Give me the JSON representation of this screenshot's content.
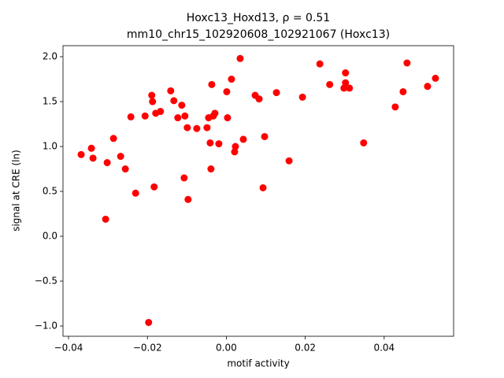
{
  "chart_data": {
    "type": "scatter",
    "title": "Hoxc13_Hoxd13, ρ = 0.51",
    "subtitle": "mm10_chr15_102920608_102921067 (Hoxc13)",
    "x_label": "motif activity",
    "y_label": "signal at CRE (ln)",
    "color": "#ff0000",
    "x": [
      -0.0368,
      -0.0342,
      -0.0338,
      -0.0306,
      -0.0302,
      -0.0286,
      -0.0268,
      -0.0256,
      -0.0242,
      -0.023,
      -0.0206,
      -0.0197,
      -0.0189,
      -0.0187,
      -0.0183,
      -0.0179,
      -0.0167,
      -0.0141,
      -0.0133,
      -0.0123,
      -0.0113,
      -0.0107,
      -0.0105,
      -0.0099,
      -0.0097,
      -0.0075,
      -0.0049,
      -0.0045,
      -0.0041,
      -0.0039,
      -0.0037,
      -0.0033,
      -0.0029,
      -0.0019,
      0.0001,
      0.0003,
      0.0013,
      0.0021,
      0.0023,
      0.0035,
      0.0043,
      0.0073,
      0.0083,
      0.0093,
      0.0097,
      0.0127,
      0.0159,
      0.0193,
      0.0237,
      0.0262,
      0.0298,
      0.0302,
      0.0302,
      0.0312,
      0.0348,
      0.0428,
      0.0448,
      0.0458,
      0.051,
      0.053
    ],
    "values": [
      0.91,
      0.98,
      0.87,
      0.19,
      0.82,
      1.09,
      0.89,
      0.75,
      1.33,
      0.48,
      1.34,
      -0.96,
      1.57,
      1.5,
      0.55,
      1.37,
      1.39,
      1.62,
      1.51,
      1.32,
      1.46,
      0.65,
      1.34,
      1.21,
      0.41,
      1.2,
      1.21,
      1.32,
      1.04,
      0.75,
      1.69,
      1.34,
      1.37,
      1.03,
      1.61,
      1.32,
      1.75,
      0.94,
      1.0,
      1.98,
      1.08,
      1.57,
      1.53,
      0.54,
      1.11,
      1.6,
      0.84,
      1.55,
      1.92,
      1.69,
      1.65,
      1.82,
      1.71,
      1.65,
      1.04,
      1.44,
      1.61,
      1.93,
      1.67,
      1.76
    ],
    "xlim": [
      -0.0414,
      0.0576
    ],
    "ylim": [
      -1.114,
      2.123
    ],
    "xticks": [
      {
        "value": -0.04,
        "label": "−0.04"
      },
      {
        "value": -0.02,
        "label": "−0.02"
      },
      {
        "value": 0,
        "label": "0.00"
      },
      0.02,
      0.04
    ],
    "yticks": [
      {
        "value": -1,
        "label": "−1.0"
      },
      {
        "value": -0.5,
        "label": "−0.5"
      },
      {
        "value": 0,
        "label": "0.0"
      },
      0.5,
      {
        "value": 1,
        "label": "1.0"
      },
      1.5,
      {
        "value": 2,
        "label": "2.0"
      }
    ]
  }
}
